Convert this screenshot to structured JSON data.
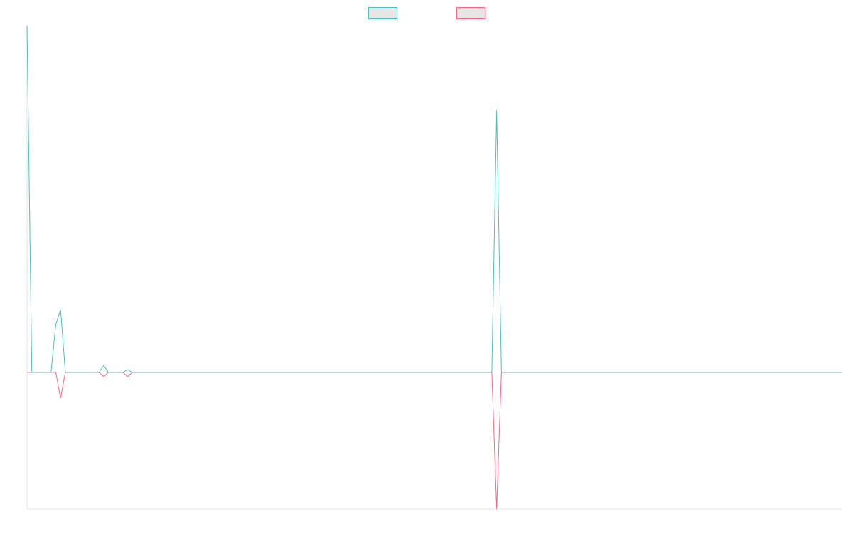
{
  "chart_data": {
    "type": "line",
    "title": "",
    "xlabel": "",
    "ylabel": "",
    "grid": false,
    "legend": {
      "position": "top-center",
      "items": [
        {
          "name": "",
          "color": "#4bc0c0"
        },
        {
          "name": "",
          "color": "#ff6384"
        }
      ]
    },
    "x": [
      0,
      1,
      2,
      3,
      4,
      5,
      6,
      7,
      8,
      9,
      10,
      11,
      12,
      13,
      14,
      15,
      16,
      17,
      18,
      19,
      20,
      21,
      22,
      23,
      24,
      25,
      26,
      27,
      28,
      29,
      30,
      31,
      32,
      33,
      34,
      35,
      36,
      37,
      38,
      39,
      40,
      41,
      42,
      43,
      44,
      45,
      46,
      47,
      48,
      49,
      50,
      51,
      52,
      53,
      54,
      55,
      56,
      57,
      58,
      59,
      60,
      61,
      62,
      63,
      64,
      65,
      66,
      67,
      68,
      69,
      70,
      71,
      72,
      73,
      74,
      75,
      76,
      77,
      78,
      79,
      80,
      81,
      82,
      83,
      84,
      85,
      86,
      87,
      88,
      89,
      90,
      91,
      92,
      93,
      94,
      95,
      96,
      97,
      98,
      99,
      100,
      101,
      102,
      103,
      104,
      105,
      106,
      107,
      108,
      109,
      110,
      111,
      112,
      113,
      114,
      115,
      116,
      117,
      118,
      119,
      120,
      121,
      122,
      123,
      124,
      125,
      126,
      127,
      128,
      129,
      130,
      131,
      132,
      133,
      134,
      135,
      136,
      137,
      138,
      139,
      140,
      141,
      142,
      143,
      144,
      145,
      146,
      147,
      148,
      149,
      150,
      151,
      152,
      153,
      154,
      155,
      156,
      157,
      158,
      159,
      160,
      161,
      162,
      163,
      164,
      165,
      166,
      167,
      168,
      169,
      170
    ],
    "ylim": [
      -1,
      2.54
    ],
    "series": [
      {
        "name": "",
        "color": "#4bc0c0",
        "values": [
          2.54,
          0,
          0,
          0,
          0,
          0,
          0.35,
          0.46,
          0,
          0,
          0,
          0,
          0,
          0,
          0,
          0,
          0.05,
          0,
          0,
          0,
          0,
          0.02,
          0,
          0,
          0,
          0,
          0,
          0,
          0,
          0,
          0,
          0,
          0,
          0,
          0,
          0,
          0,
          0,
          0,
          0,
          0,
          0,
          0,
          0,
          0,
          0,
          0,
          0,
          0,
          0,
          0,
          0,
          0,
          0,
          0,
          0,
          0,
          0,
          0,
          0,
          0,
          0,
          0,
          0,
          0,
          0,
          0,
          0,
          0,
          0,
          0,
          0,
          0,
          0,
          0,
          0,
          0,
          0,
          0,
          0,
          0,
          0,
          0,
          0,
          0,
          0,
          0,
          0,
          0,
          0,
          0,
          0,
          0,
          0,
          0,
          0,
          0,
          0,
          1.92,
          0,
          0,
          0,
          0,
          0,
          0,
          0,
          0,
          0,
          0,
          0,
          0,
          0,
          0,
          0,
          0,
          0,
          0,
          0,
          0,
          0,
          0,
          0,
          0,
          0,
          0,
          0,
          0,
          0,
          0,
          0,
          0,
          0,
          0,
          0,
          0,
          0,
          0,
          0,
          0,
          0,
          0,
          0,
          0,
          0,
          0,
          0,
          0,
          0,
          0,
          0,
          0,
          0,
          0,
          0,
          0,
          0,
          0,
          0,
          0,
          0,
          0,
          0,
          0,
          0,
          0,
          0,
          0,
          0,
          0,
          0,
          0
        ]
      },
      {
        "name": "",
        "color": "#ff6384",
        "values": [
          0,
          0,
          0,
          0,
          0,
          0,
          0,
          -0.19,
          0,
          0,
          0,
          0,
          0,
          0,
          0,
          0,
          -0.03,
          0,
          0,
          0,
          0,
          -0.03,
          0,
          0,
          0,
          0,
          0,
          0,
          0,
          0,
          0,
          0,
          0,
          0,
          0,
          0,
          0,
          0,
          0,
          0,
          0,
          0,
          0,
          0,
          0,
          0,
          0,
          0,
          0,
          0,
          0,
          0,
          0,
          0,
          0,
          0,
          0,
          0,
          0,
          0,
          0,
          0,
          0,
          0,
          0,
          0,
          0,
          0,
          0,
          0,
          0,
          0,
          0,
          0,
          0,
          0,
          0,
          0,
          0,
          0,
          0,
          0,
          0,
          0,
          0,
          0,
          0,
          0,
          0,
          0,
          0,
          0,
          0,
          0,
          0,
          0,
          0,
          0,
          -1,
          0,
          0,
          0,
          0,
          0,
          0,
          0,
          0,
          0,
          0,
          0,
          0,
          0,
          0,
          0,
          0,
          0,
          0,
          0,
          0,
          0,
          0,
          0,
          0,
          0,
          0,
          0,
          0,
          0,
          0,
          0,
          0,
          0,
          0,
          0,
          0,
          0,
          0,
          0,
          0,
          0,
          0,
          0,
          0,
          0,
          0,
          0,
          0,
          0,
          0,
          0,
          0,
          0,
          0,
          0,
          0,
          0,
          0,
          0,
          0,
          0,
          0,
          0,
          0,
          0,
          0,
          0,
          0,
          0,
          0,
          0,
          0
        ]
      }
    ]
  }
}
